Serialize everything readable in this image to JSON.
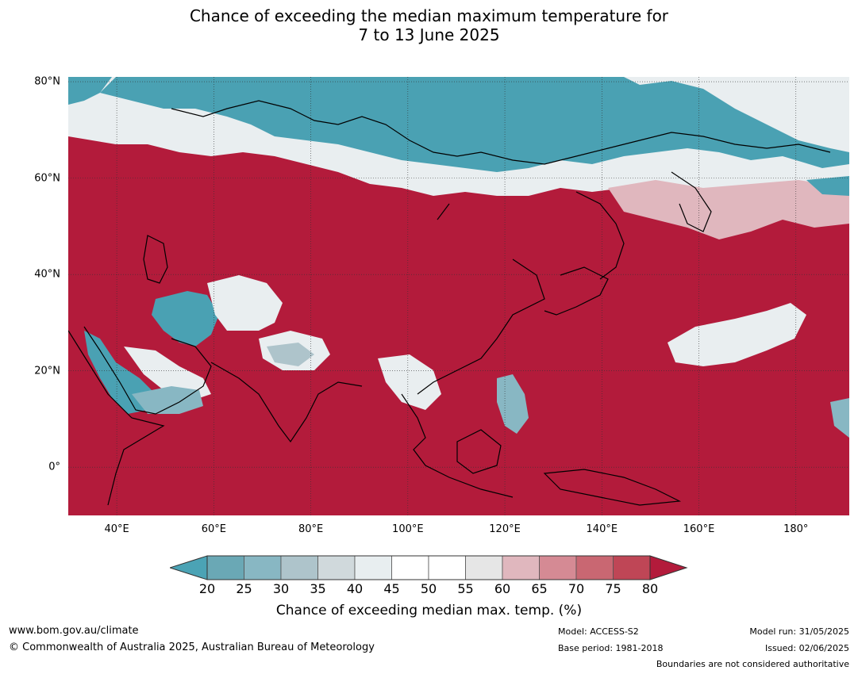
{
  "title": {
    "line1": "Chance of exceeding the median maximum temperature for",
    "line2": "7 to 13 June 2025"
  },
  "map": {
    "lon_range": [
      30,
      191
    ],
    "lat_range": [
      -10,
      81
    ],
    "lat_ticks": [
      {
        "value": 80,
        "label": "80°N"
      },
      {
        "value": 60,
        "label": "60°N"
      },
      {
        "value": 40,
        "label": "40°N"
      },
      {
        "value": 20,
        "label": "20°N"
      },
      {
        "value": 0,
        "label": "0°"
      }
    ],
    "lon_ticks": [
      {
        "value": 40,
        "label": "40°E"
      },
      {
        "value": 60,
        "label": "60°E"
      },
      {
        "value": 80,
        "label": "80°E"
      },
      {
        "value": 100,
        "label": "100°E"
      },
      {
        "value": 120,
        "label": "120°E"
      },
      {
        "value": 140,
        "label": "140°E"
      },
      {
        "value": 160,
        "label": "160°E"
      },
      {
        "value": 180,
        "label": "180°"
      }
    ],
    "background_color": "#b31b3b"
  },
  "colorbar": {
    "title": "Chance of exceeding median max. temp. (%)",
    "ticks": [
      "20",
      "25",
      "30",
      "35",
      "40",
      "45",
      "50",
      "55",
      "60",
      "65",
      "70",
      "75",
      "80"
    ],
    "low_extend_color": "#4ba3b5",
    "high_extend_color": "#b31b3b",
    "colors": [
      "#6aa8b5",
      "#88b7c3",
      "#aec4cb",
      "#d0d9dc",
      "#e8eef0",
      "#ffffff",
      "#ffffff",
      "#e6e6e6",
      "#e0b7be",
      "#d58a94",
      "#c96772",
      "#bf4656"
    ]
  },
  "footer": {
    "website": "www.bom.gov.au/climate",
    "copyright": "© Commonwealth of Australia 2025, Australian Bureau of Meteorology",
    "model": "Model: ACCESS-S2",
    "base_period": "Base period: 1981-2018",
    "model_run": "Model run: 31/05/2025",
    "issued": "Issued: 02/06/2025",
    "disclaimer": "Boundaries are not considered authoritative"
  }
}
